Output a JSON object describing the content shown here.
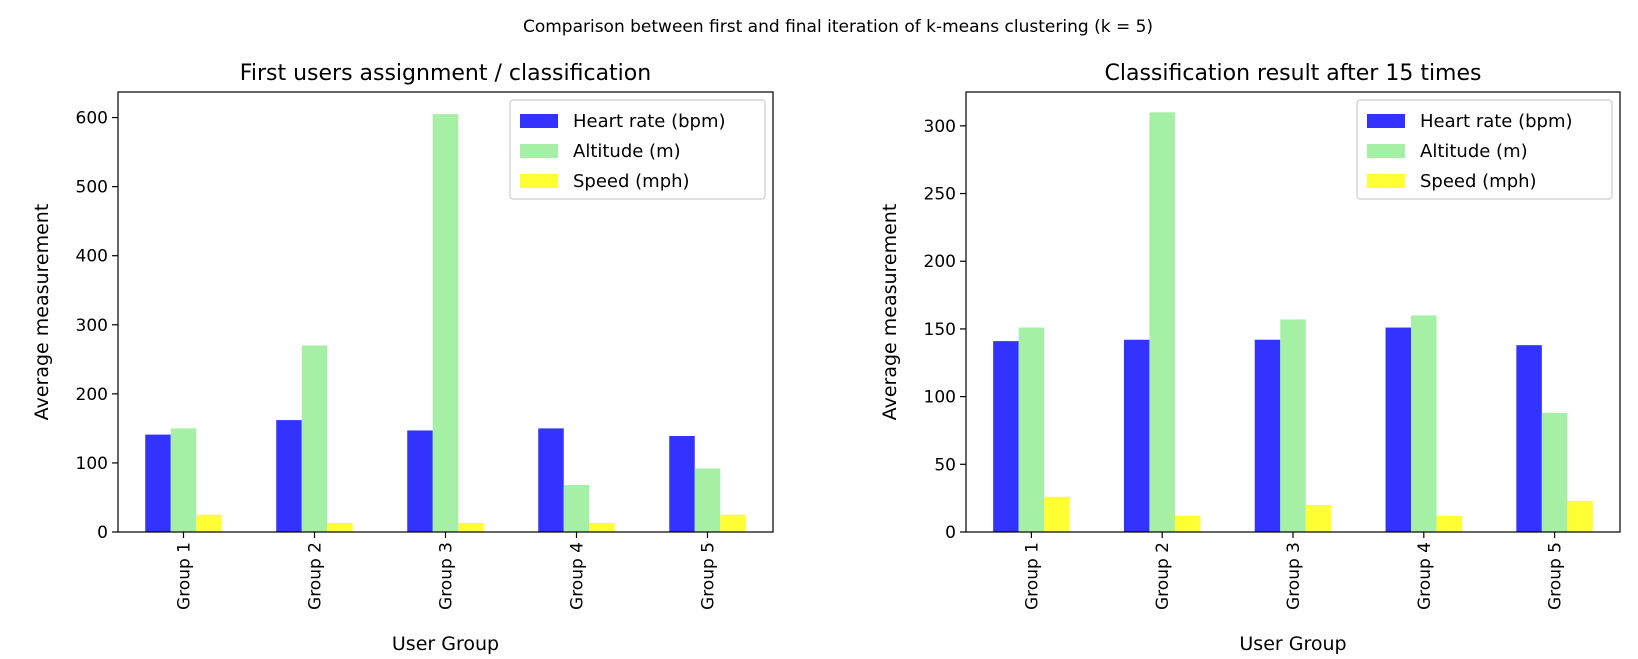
{
  "suptitle": "Comparison between first and final iteration of k-means clustering (k = 5)",
  "colors": {
    "heart_rate": "#3333ff",
    "altitude": "#a5f0a5",
    "speed": "#ffff33"
  },
  "chart_data": [
    {
      "type": "bar",
      "title": "First users assignment / classification",
      "xlabel": "User Group",
      "ylabel": "Average measurement",
      "categories": [
        "Group 1",
        "Group 2",
        "Group 3",
        "Group 4",
        "Group 5"
      ],
      "series": [
        {
          "name": "Heart rate (bpm)",
          "color": "#3333ff",
          "values": [
            141,
            162,
            147,
            150,
            139
          ]
        },
        {
          "name": "Altitude (m)",
          "color": "#a5f0a5",
          "values": [
            150,
            270,
            605,
            68,
            92
          ]
        },
        {
          "name": "Speed (mph)",
          "color": "#ffff33",
          "values": [
            25,
            13,
            13,
            13,
            25
          ]
        }
      ],
      "ylim": [
        0,
        637
      ],
      "yticks": [
        0,
        100,
        200,
        300,
        400,
        500,
        600
      ],
      "legend": "top-right",
      "grid": false
    },
    {
      "type": "bar",
      "title": "Classification result after 15 times",
      "xlabel": "User Group",
      "ylabel": "Average measurement",
      "categories": [
        "Group 1",
        "Group 2",
        "Group 3",
        "Group 4",
        "Group 5"
      ],
      "series": [
        {
          "name": "Heart rate (bpm)",
          "color": "#3333ff",
          "values": [
            141,
            142,
            142,
            151,
            138
          ]
        },
        {
          "name": "Altitude (m)",
          "color": "#a5f0a5",
          "values": [
            151,
            310,
            157,
            160,
            88
          ]
        },
        {
          "name": "Speed (mph)",
          "color": "#ffff33",
          "values": [
            26,
            12,
            20,
            12,
            23
          ]
        }
      ],
      "ylim": [
        0,
        325
      ],
      "yticks": [
        0,
        50,
        100,
        150,
        200,
        250,
        300
      ],
      "legend": "top-right",
      "grid": false
    }
  ]
}
